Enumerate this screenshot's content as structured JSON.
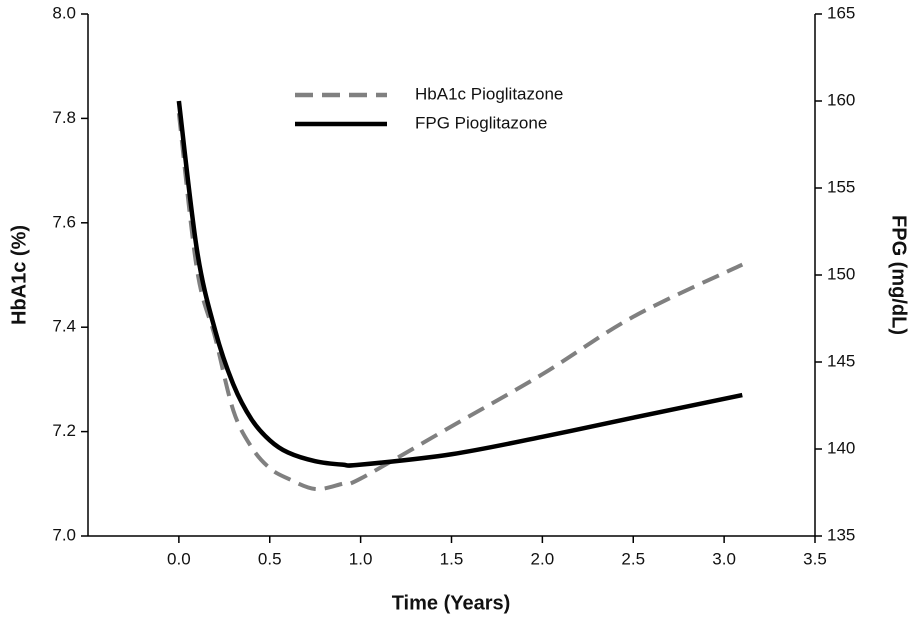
{
  "chart_data": {
    "type": "line",
    "x_label": "Time (Years)",
    "y_label": "HbA1c (%)",
    "y2_label": "FPG (mg/dL)",
    "x": [
      0,
      0.1,
      0.2,
      0.3,
      0.4,
      0.5,
      0.6,
      0.75,
      0.9,
      1.0,
      1.5,
      2.0,
      2.5,
      3.1
    ],
    "series": [
      {
        "name": "HbA1c Pioglitazone",
        "color": "#808080",
        "linestyle": "dashed",
        "values": [
          7.81,
          7.51,
          7.38,
          7.24,
          7.17,
          7.13,
          7.11,
          7.09,
          7.1,
          7.11,
          7.21,
          7.31,
          7.42,
          7.52
        ]
      },
      {
        "name": "FPG Pioglitazone",
        "color": "#000000",
        "linestyle": "solid",
        "axis": "y2",
        "values": [
          160,
          151.4,
          146.8,
          143.7,
          141.7,
          140.5,
          139.8,
          139.3,
          139.1,
          139.1,
          139.7,
          140.7,
          141.8,
          143.1
        ]
      }
    ],
    "xlim": [
      -0.5,
      3.5
    ],
    "xticks": [
      {
        "value": 0,
        "label": "0.0"
      },
      0.5,
      {
        "value": 1,
        "label": "1.0"
      },
      1.5,
      {
        "value": 2,
        "label": "2.0"
      },
      2.5,
      {
        "value": 3,
        "label": "3.0"
      },
      3.5
    ],
    "ylim": [
      7,
      8
    ],
    "yticks": [
      {
        "value": 7,
        "label": "7.0"
      },
      7.2,
      7.4,
      7.6,
      7.8,
      {
        "value": 8,
        "label": "8.0"
      }
    ],
    "y2lim": [
      135,
      165
    ],
    "y2ticks": [
      135,
      140,
      145,
      150,
      155,
      160,
      165
    ],
    "grid": false,
    "legend": "upper center"
  }
}
